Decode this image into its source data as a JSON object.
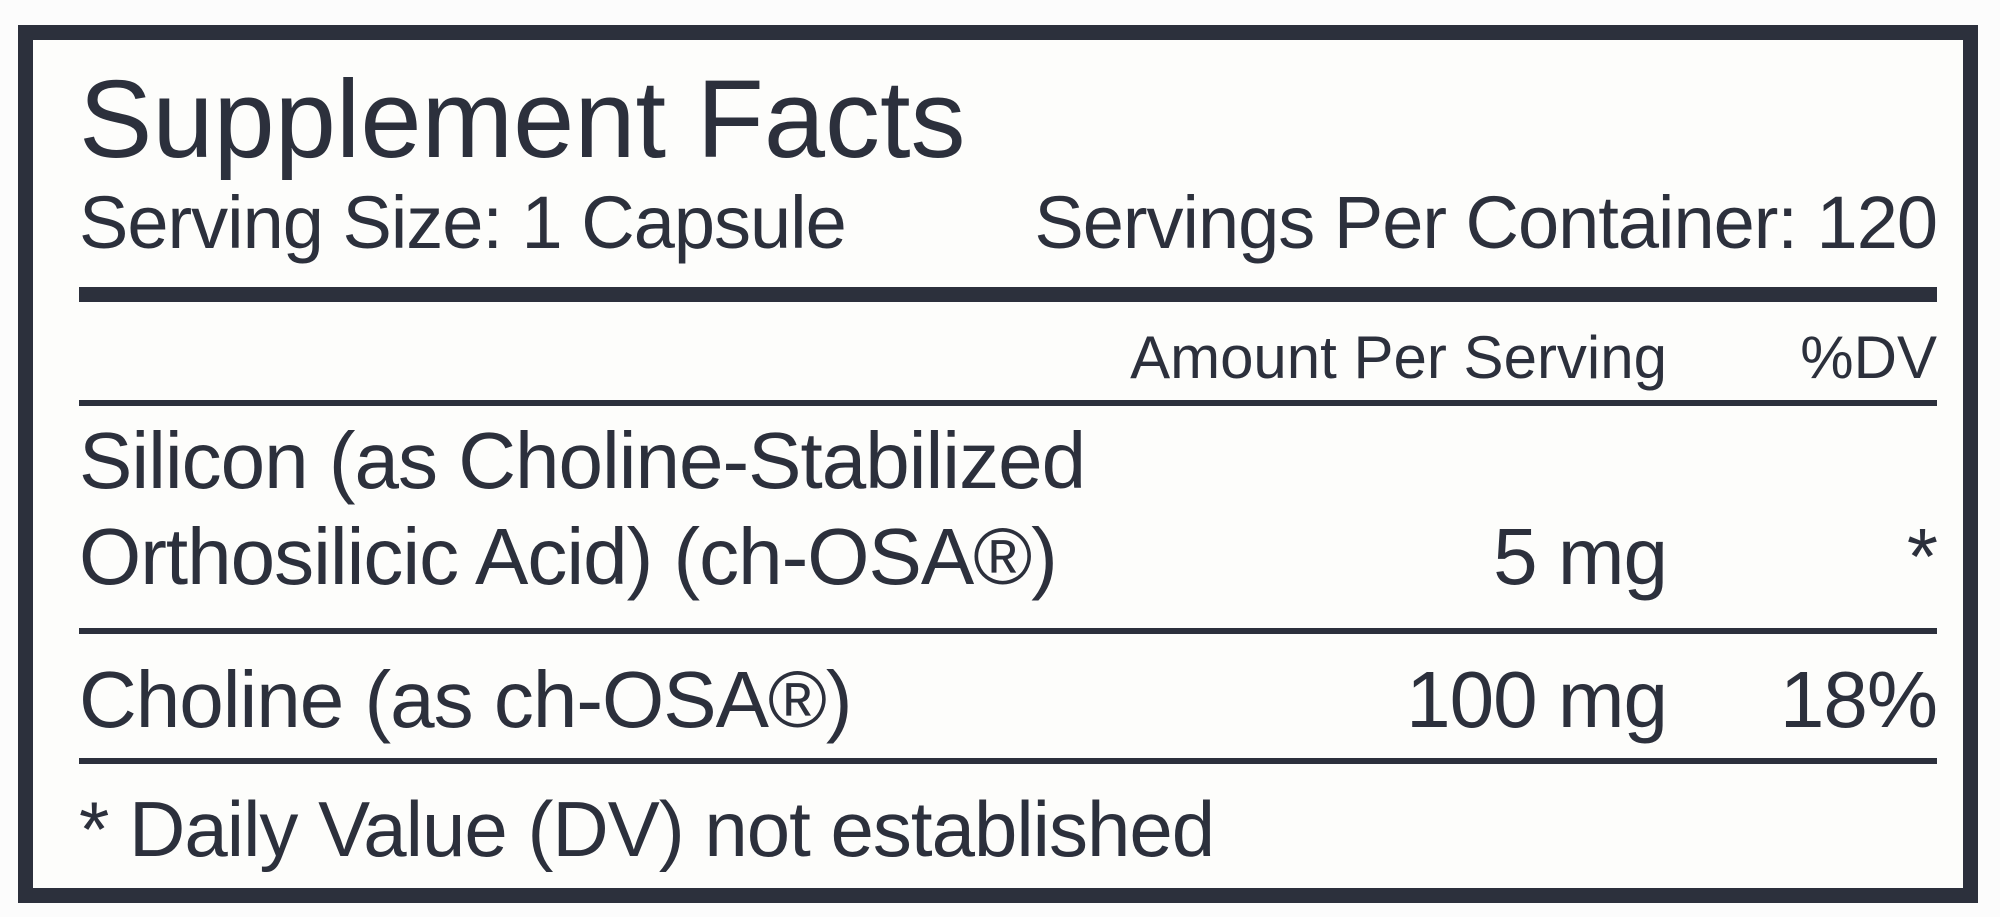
{
  "supplement_facts": {
    "title": "Supplement Facts",
    "serving_size": "Serving Size: 1 Capsule",
    "servings_per_container": "Servings Per Container: 120",
    "column_headers": {
      "amount": "Amount Per Serving",
      "dv": "%DV"
    },
    "nutrients": [
      {
        "name_lines": [
          "Silicon (as Choline-Stabilized",
          "Orthosilicic Acid) (ch-OSA®)"
        ],
        "amount": "5 mg",
        "dv": "*"
      },
      {
        "name_lines": [
          "Choline (as ch-OSA®)"
        ],
        "amount": "100 mg",
        "dv": "18%"
      }
    ],
    "footnote": "* Daily Value (DV) not established",
    "colors": {
      "ink": "#2c303c",
      "panel_background": "#fdfdfb",
      "page_background": "#fcfcfc"
    }
  }
}
